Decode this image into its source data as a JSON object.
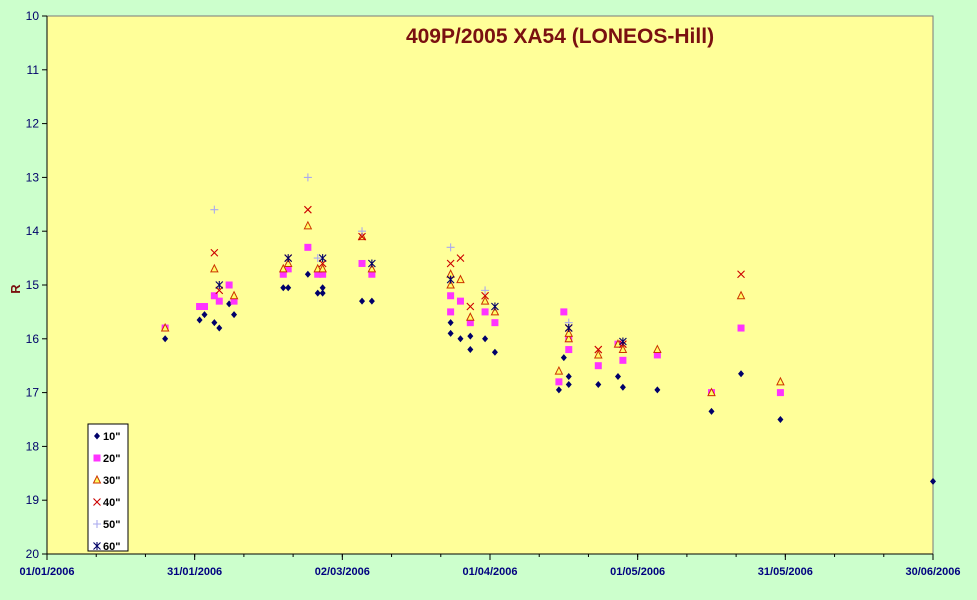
{
  "chart_data": {
    "type": "scatter",
    "title": "409P/2005 XA54 (LONEOS-Hill)",
    "ylabel": "R",
    "xlabel": "",
    "y_reversed": true,
    "ylim": [
      10,
      20
    ],
    "yticks": [
      10,
      11,
      12,
      13,
      14,
      15,
      16,
      17,
      18,
      19,
      20
    ],
    "xlim": [
      "01/01/2006",
      "30/06/2006"
    ],
    "xticks": [
      "01/01/2006",
      "31/01/2006",
      "02/03/2006",
      "01/04/2006",
      "01/05/2006",
      "31/05/2006",
      "30/06/2006"
    ],
    "legend_position": "bottom-left",
    "plot_background": "#ffff99",
    "series": [
      {
        "name": "10\"",
        "marker": "diamond",
        "color": "#00006a",
        "points": [
          [
            "25/01/2006",
            16.0
          ],
          [
            "01/02/2006",
            15.65
          ],
          [
            "02/02/2006",
            15.55
          ],
          [
            "04/02/2006",
            15.7
          ],
          [
            "05/02/2006",
            15.8
          ],
          [
            "07/02/2006",
            15.35
          ],
          [
            "08/02/2006",
            15.55
          ],
          [
            "18/02/2006",
            15.05
          ],
          [
            "19/02/2006",
            15.05
          ],
          [
            "23/02/2006",
            14.8
          ],
          [
            "25/02/2006",
            15.15
          ],
          [
            "26/02/2006",
            15.05
          ],
          [
            "26/02/2006",
            15.15
          ],
          [
            "06/03/2006",
            15.3
          ],
          [
            "08/03/2006",
            15.3
          ],
          [
            "24/03/2006",
            15.9
          ],
          [
            "24/03/2006",
            15.7
          ],
          [
            "26/03/2006",
            16.0
          ],
          [
            "28/03/2006",
            16.2
          ],
          [
            "28/03/2006",
            15.95
          ],
          [
            "31/03/2006",
            16.0
          ],
          [
            "02/04/2006",
            16.25
          ],
          [
            "15/04/2006",
            16.95
          ],
          [
            "16/04/2006",
            16.35
          ],
          [
            "17/04/2006",
            16.85
          ],
          [
            "17/04/2006",
            16.7
          ],
          [
            "23/04/2006",
            16.85
          ],
          [
            "27/04/2006",
            16.7
          ],
          [
            "28/04/2006",
            16.9
          ],
          [
            "05/05/2006",
            16.95
          ],
          [
            "16/05/2006",
            17.35
          ],
          [
            "22/05/2006",
            16.65
          ],
          [
            "30/05/2006",
            17.5
          ],
          [
            "30/06/2006",
            18.65
          ]
        ]
      },
      {
        "name": "20\"",
        "marker": "square",
        "color": "#ff33ff",
        "points": [
          [
            "25/01/2006",
            15.8
          ],
          [
            "01/02/2006",
            15.4
          ],
          [
            "02/02/2006",
            15.4
          ],
          [
            "04/02/2006",
            15.2
          ],
          [
            "05/02/2006",
            15.3
          ],
          [
            "07/02/2006",
            15.0
          ],
          [
            "08/02/2006",
            15.3
          ],
          [
            "18/02/2006",
            14.8
          ],
          [
            "19/02/2006",
            14.7
          ],
          [
            "23/02/2006",
            14.3
          ],
          [
            "25/02/2006",
            14.8
          ],
          [
            "26/02/2006",
            14.8
          ],
          [
            "06/03/2006",
            14.6
          ],
          [
            "08/03/2006",
            14.8
          ],
          [
            "24/03/2006",
            15.2
          ],
          [
            "24/03/2006",
            15.5
          ],
          [
            "26/03/2006",
            15.3
          ],
          [
            "28/03/2006",
            15.7
          ],
          [
            "31/03/2006",
            15.5
          ],
          [
            "02/04/2006",
            15.7
          ],
          [
            "15/04/2006",
            16.8
          ],
          [
            "16/04/2006",
            15.5
          ],
          [
            "17/04/2006",
            16.2
          ],
          [
            "17/04/2006",
            16.0
          ],
          [
            "23/04/2006",
            16.5
          ],
          [
            "27/04/2006",
            16.1
          ],
          [
            "28/04/2006",
            16.4
          ],
          [
            "05/05/2006",
            16.3
          ],
          [
            "16/05/2006",
            17.0
          ],
          [
            "22/05/2006",
            15.8
          ],
          [
            "30/05/2006",
            17.0
          ]
        ]
      },
      {
        "name": "30\"",
        "marker": "triangle",
        "color": "#cc3300",
        "points": [
          [
            "25/01/2006",
            15.8
          ],
          [
            "04/02/2006",
            14.7
          ],
          [
            "08/02/2006",
            15.2
          ],
          [
            "18/02/2006",
            14.7
          ],
          [
            "19/02/2006",
            14.6
          ],
          [
            "23/02/2006",
            13.9
          ],
          [
            "25/02/2006",
            14.7
          ],
          [
            "26/02/2006",
            14.7
          ],
          [
            "06/03/2006",
            14.1
          ],
          [
            "08/03/2006",
            14.7
          ],
          [
            "24/03/2006",
            14.8
          ],
          [
            "24/03/2006",
            15.0
          ],
          [
            "26/03/2006",
            14.9
          ],
          [
            "28/03/2006",
            15.6
          ],
          [
            "31/03/2006",
            15.3
          ],
          [
            "02/04/2006",
            15.5
          ],
          [
            "15/04/2006",
            16.6
          ],
          [
            "17/04/2006",
            16.0
          ],
          [
            "17/04/2006",
            15.9
          ],
          [
            "23/04/2006",
            16.3
          ],
          [
            "27/04/2006",
            16.1
          ],
          [
            "28/04/2006",
            16.2
          ],
          [
            "05/05/2006",
            16.2
          ],
          [
            "16/05/2006",
            17.0
          ],
          [
            "22/05/2006",
            15.2
          ],
          [
            "30/05/2006",
            16.8
          ]
        ]
      },
      {
        "name": "40\"",
        "marker": "x",
        "color": "#cc0000",
        "points": [
          [
            "04/02/2006",
            14.4
          ],
          [
            "05/02/2006",
            15.1
          ],
          [
            "19/02/2006",
            14.5
          ],
          [
            "23/02/2006",
            13.6
          ],
          [
            "26/02/2006",
            14.6
          ],
          [
            "06/03/2006",
            14.1
          ],
          [
            "24/03/2006",
            14.6
          ],
          [
            "26/03/2006",
            14.5
          ],
          [
            "28/03/2006",
            15.4
          ],
          [
            "31/03/2006",
            15.2
          ],
          [
            "17/04/2006",
            15.8
          ],
          [
            "23/04/2006",
            16.2
          ],
          [
            "28/04/2006",
            16.1
          ],
          [
            "22/05/2006",
            14.8
          ]
        ]
      },
      {
        "name": "50\"",
        "marker": "plus",
        "color": "#aaaaee",
        "points": [
          [
            "04/02/2006",
            13.6
          ],
          [
            "23/02/2006",
            13.0
          ],
          [
            "25/02/2006",
            14.5
          ],
          [
            "06/03/2006",
            14.0
          ],
          [
            "24/03/2006",
            14.3
          ],
          [
            "31/03/2006",
            15.1
          ],
          [
            "17/04/2006",
            15.7
          ]
        ]
      },
      {
        "name": "60\"",
        "marker": "asterisk",
        "color": "#000066",
        "points": [
          [
            "05/02/2006",
            15.0
          ],
          [
            "19/02/2006",
            14.5
          ],
          [
            "26/02/2006",
            14.5
          ],
          [
            "08/03/2006",
            14.6
          ],
          [
            "24/03/2006",
            14.9
          ],
          [
            "02/04/2006",
            15.4
          ],
          [
            "17/04/2006",
            15.8
          ],
          [
            "28/04/2006",
            16.05
          ]
        ]
      }
    ]
  }
}
